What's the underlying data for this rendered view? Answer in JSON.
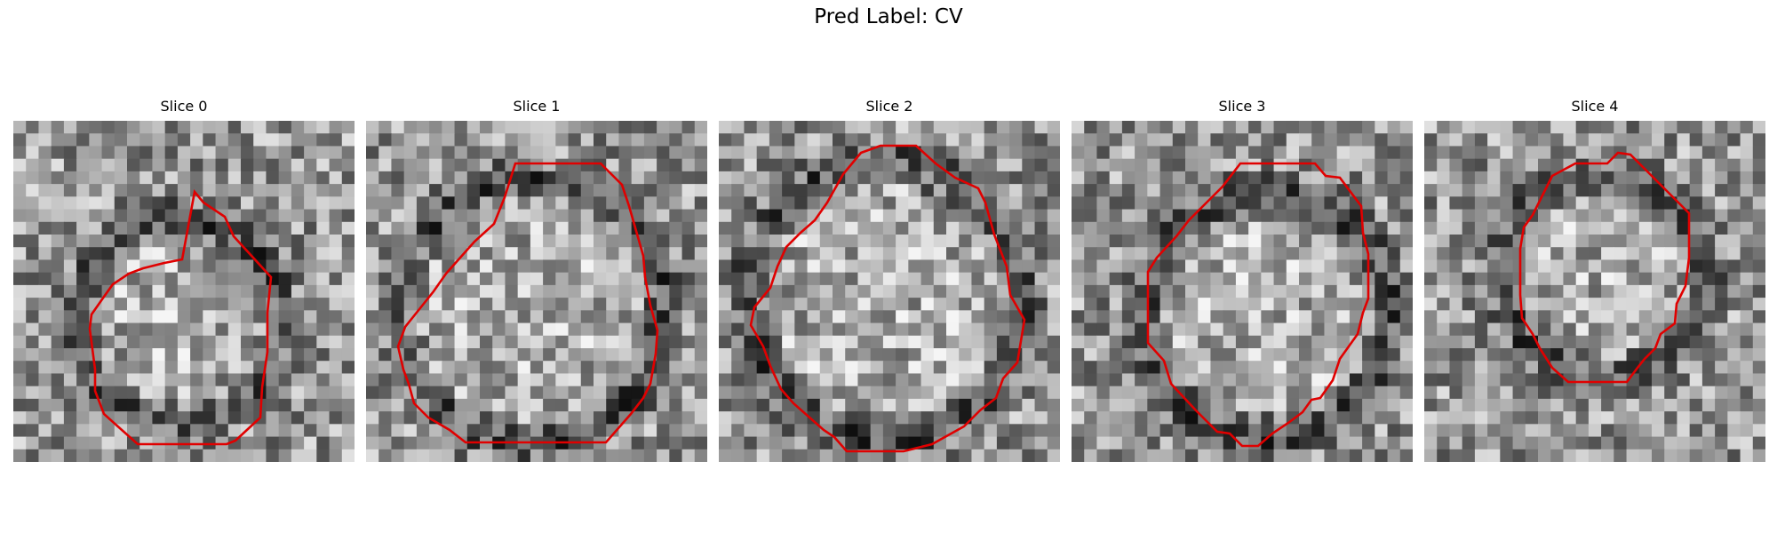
{
  "figure": {
    "title": "Pred Label: CV",
    "contour_color": "#e00000",
    "slices": [
      {
        "label": "Slice 0"
      },
      {
        "label": "Slice 1"
      },
      {
        "label": "Slice 2"
      },
      {
        "label": "Slice 3"
      },
      {
        "label": "Slice 4"
      }
    ]
  }
}
